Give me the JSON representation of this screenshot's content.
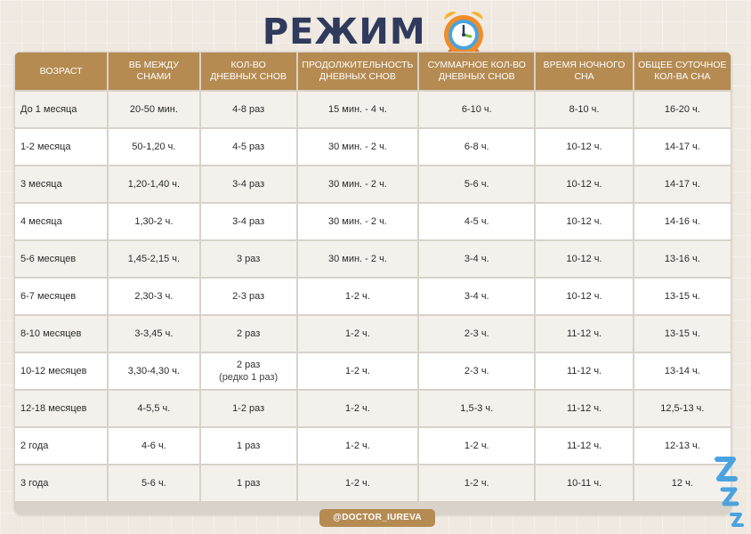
{
  "title": "РЕЖИМ",
  "handle": "@DOCTOR_IUREVA",
  "colors": {
    "header": "#b58b52",
    "title": "#2f3a5c",
    "accent_blue": "#4aa3df"
  },
  "icons": {
    "clock": "alarm-clock-icon",
    "sleep": "zzz-icon"
  },
  "table": {
    "headers": [
      {
        "l1": "ВОЗРАСТ",
        "l2": ""
      },
      {
        "l1": "ВБ МЕЖДУ",
        "l2": "СНАМИ"
      },
      {
        "l1": "КОЛ-ВО",
        "l2": "ДНЕВНЫХ СНОВ"
      },
      {
        "l1": "ПРОДОЛЖИТЕЛЬНОСТЬ",
        "l2": "ДНЕВНЫХ СНОВ"
      },
      {
        "l1": "СУММАРНОЕ КОЛ-ВО",
        "l2": "ДНЕВНЫХ СНОВ"
      },
      {
        "l1": "ВРЕМЯ НОЧНОГО",
        "l2": "СНА"
      },
      {
        "l1": "ОБЩЕЕ СУТОЧНОЕ",
        "l2": "КОЛ-ВА СНА"
      }
    ],
    "rows": [
      {
        "age": "До 1 месяца",
        "awake": "20-50 мин.",
        "naps": "4-8 раз",
        "nap_note": "",
        "nap_len": "15 мин. - 4 ч.",
        "nap_total": "6-10 ч.",
        "night": "8-10 ч.",
        "daily": "16-20 ч."
      },
      {
        "age": "1-2 месяца",
        "awake": "50-1,20 ч.",
        "naps": "4-5 раз",
        "nap_note": "",
        "nap_len": "30 мин. - 2 ч.",
        "nap_total": "6-8 ч.",
        "night": "10-12 ч.",
        "daily": "14-17 ч."
      },
      {
        "age": "3 месяца",
        "awake": "1,20-1,40 ч.",
        "naps": "3-4 раз",
        "nap_note": "",
        "nap_len": "30 мин. - 2 ч.",
        "nap_total": "5-6 ч.",
        "night": "10-12 ч.",
        "daily": "14-17 ч."
      },
      {
        "age": "4 месяца",
        "awake": "1,30-2 ч.",
        "naps": "3-4 раз",
        "nap_note": "",
        "nap_len": "30 мин. - 2 ч.",
        "nap_total": "4-5 ч.",
        "night": "10-12 ч.",
        "daily": "14-16 ч."
      },
      {
        "age": "5-6 месяцев",
        "awake": "1,45-2,15 ч.",
        "naps": "3 раз",
        "nap_note": "",
        "nap_len": "30 мин. - 2 ч.",
        "nap_total": "3-4 ч.",
        "night": "10-12 ч.",
        "daily": "13-16 ч."
      },
      {
        "age": "6-7 месяцев",
        "awake": "2,30-3 ч.",
        "naps": "2-3 раз",
        "nap_note": "",
        "nap_len": "1-2 ч.",
        "nap_total": "3-4 ч.",
        "night": "10-12 ч.",
        "daily": "13-15 ч."
      },
      {
        "age": "8-10 месяцев",
        "awake": "3-3,45 ч.",
        "naps": "2 раз",
        "nap_note": "",
        "nap_len": "1-2 ч.",
        "nap_total": "2-3 ч.",
        "night": "11-12 ч.",
        "daily": "13-15 ч."
      },
      {
        "age": "10-12 месяцев",
        "awake": "3,30-4,30 ч.",
        "naps": "2 раз",
        "nap_note": "(редко 1 раз)",
        "nap_len": "1-2 ч.",
        "nap_total": "2-3 ч.",
        "night": "11-12 ч.",
        "daily": "13-14 ч."
      },
      {
        "age": "12-18 месяцев",
        "awake": "4-5,5 ч.",
        "naps": "1-2 раз",
        "nap_note": "",
        "nap_len": "1-2 ч.",
        "nap_total": "1,5-3 ч.",
        "night": "11-12 ч.",
        "daily": "12,5-13 ч."
      },
      {
        "age": "2 года",
        "awake": "4-6 ч.",
        "naps": "1 раз",
        "nap_note": "",
        "nap_len": "1-2 ч.",
        "nap_total": "1-2 ч.",
        "night": "11-12 ч.",
        "daily": "12-13 ч."
      },
      {
        "age": "3 года",
        "awake": "5-6 ч.",
        "naps": "1 раз",
        "nap_note": "",
        "nap_len": "1-2 ч.",
        "nap_total": "1-2 ч.",
        "night": "10-11 ч.",
        "daily": "12 ч."
      }
    ]
  }
}
